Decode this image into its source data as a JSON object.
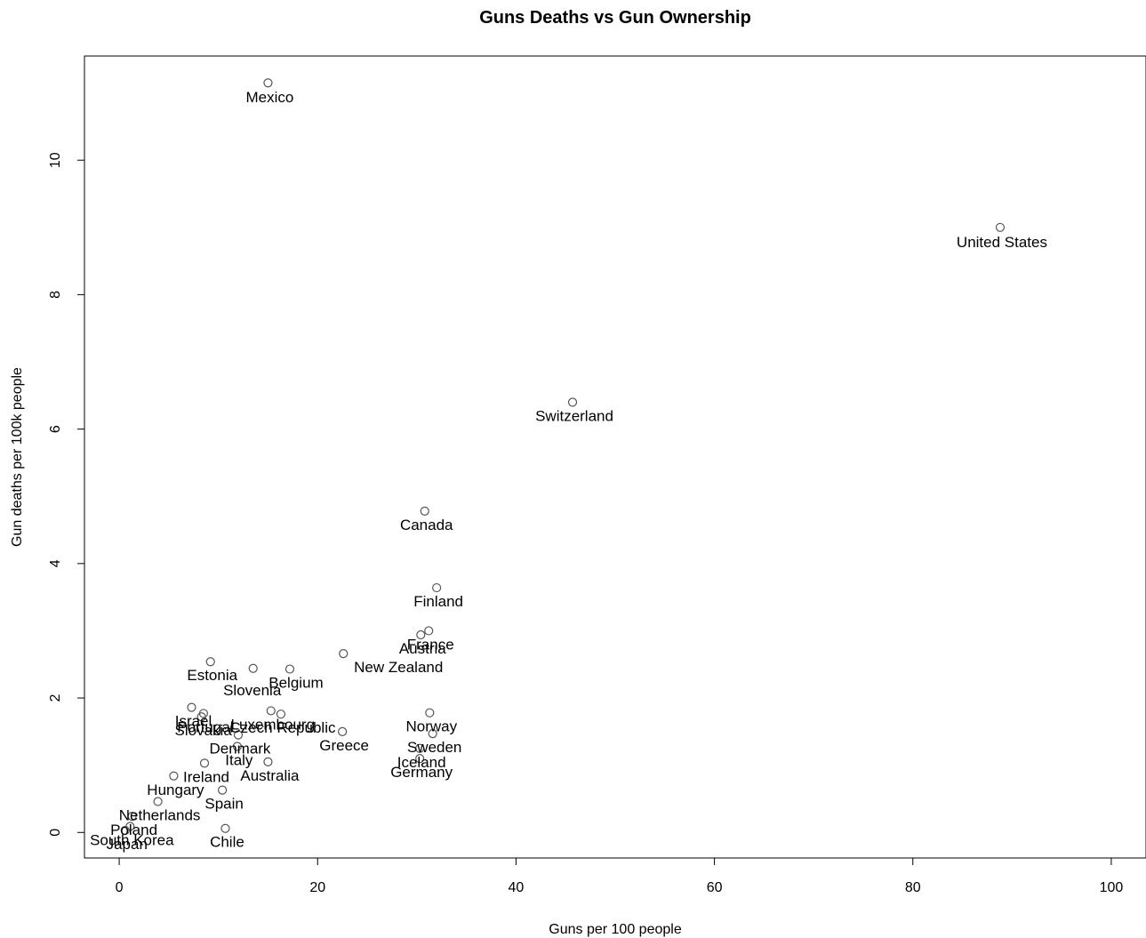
{
  "chart_data": {
    "type": "scatter",
    "title": "Guns Deaths vs Gun Ownership",
    "xlabel": "Guns per 100 people",
    "ylabel": "Gun deaths per 100k people",
    "xlim": [
      -3.5,
      103.5
    ],
    "ylim": [
      -0.38,
      11.55
    ],
    "xticks": [
      0,
      20,
      40,
      60,
      80,
      100
    ],
    "yticks": [
      0,
      2,
      4,
      6,
      8,
      10
    ],
    "grid": false,
    "legend": "none",
    "points": [
      {
        "label": "Mexico",
        "x": 15,
        "y": 11.15
      },
      {
        "label": "United States",
        "x": 88.8,
        "y": 9.0
      },
      {
        "label": "Switzerland",
        "x": 45.7,
        "y": 6.4
      },
      {
        "label": "Canada",
        "x": 30.8,
        "y": 4.78
      },
      {
        "label": "Finland",
        "x": 32.0,
        "y": 3.64
      },
      {
        "label": "France",
        "x": 31.2,
        "y": 3.0
      },
      {
        "label": "Austria",
        "x": 30.4,
        "y": 2.94
      },
      {
        "label": "New Zealand",
        "x": 22.6,
        "y": 2.66
      },
      {
        "label": "Estonia",
        "x": 9.2,
        "y": 2.54
      },
      {
        "label": "Slovenia",
        "x": 13.5,
        "y": 2.44
      },
      {
        "label": "Belgium",
        "x": 17.2,
        "y": 2.43
      },
      {
        "label": "Israel",
        "x": 7.3,
        "y": 1.86
      },
      {
        "label": "Portugal",
        "x": 8.5,
        "y": 1.77
      },
      {
        "label": "Slovakia",
        "x": 8.3,
        "y": 1.72
      },
      {
        "label": "Luxembourg",
        "x": 15.3,
        "y": 1.81
      },
      {
        "label": "Czech Republic",
        "x": 16.3,
        "y": 1.76
      },
      {
        "label": "Greece",
        "x": 22.5,
        "y": 1.5
      },
      {
        "label": "Norway",
        "x": 31.3,
        "y": 1.78
      },
      {
        "label": "Sweden",
        "x": 31.6,
        "y": 1.47
      },
      {
        "label": "Denmark",
        "x": 12.0,
        "y": 1.45
      },
      {
        "label": "Italy",
        "x": 11.9,
        "y": 1.28
      },
      {
        "label": "Iceland",
        "x": 30.3,
        "y": 1.25
      },
      {
        "label": "Germany",
        "x": 30.3,
        "y": 1.1
      },
      {
        "label": "Australia",
        "x": 15.0,
        "y": 1.05
      },
      {
        "label": "Ireland",
        "x": 8.6,
        "y": 1.03
      },
      {
        "label": "Hungary",
        "x": 5.5,
        "y": 0.84
      },
      {
        "label": "Spain",
        "x": 10.4,
        "y": 0.63
      },
      {
        "label": "Netherlands",
        "x": 3.9,
        "y": 0.46
      },
      {
        "label": "Poland",
        "x": 1.3,
        "y": 0.24
      },
      {
        "label": "South Korea",
        "x": 1.1,
        "y": 0.09
      },
      {
        "label": "Japan",
        "x": 0.6,
        "y": 0.03
      },
      {
        "label": "Chile",
        "x": 10.7,
        "y": 0.06
      }
    ],
    "label_offsets": {
      "Mexico": [
        2,
        22
      ],
      "United States": [
        2,
        22
      ],
      "Switzerland": [
        2,
        21
      ],
      "Canada": [
        2,
        21
      ],
      "Finland": [
        2,
        21
      ],
      "France": [
        2,
        21
      ],
      "Austria": [
        2,
        21
      ],
      "New Zealand": [
        62,
        21
      ],
      "Estonia": [
        2,
        21
      ],
      "Slovenia": [
        -1,
        30
      ],
      "Belgium": [
        7,
        21
      ],
      "Israel": [
        2,
        21
      ],
      "Portugal": [
        2,
        21
      ],
      "Slovakia": [
        2,
        21
      ],
      "Luxembourg": [
        2,
        21
      ],
      "Czech Republic": [
        2,
        21
      ],
      "Greece": [
        2,
        21
      ],
      "Norway": [
        2,
        21
      ],
      "Sweden": [
        2,
        21
      ],
      "Denmark": [
        2,
        21
      ],
      "Italy": [
        2,
        21
      ],
      "Iceland": [
        2,
        21
      ],
      "Germany": [
        2,
        21
      ],
      "Australia": [
        2,
        21
      ],
      "Ireland": [
        2,
        21
      ],
      "Hungary": [
        2,
        21
      ],
      "Spain": [
        2,
        21
      ],
      "Netherlands": [
        2,
        21
      ],
      "Poland": [
        2,
        21
      ],
      "South Korea": [
        2,
        21
      ],
      "Japan": [
        2,
        21
      ],
      "Chile": [
        2,
        21
      ]
    }
  }
}
